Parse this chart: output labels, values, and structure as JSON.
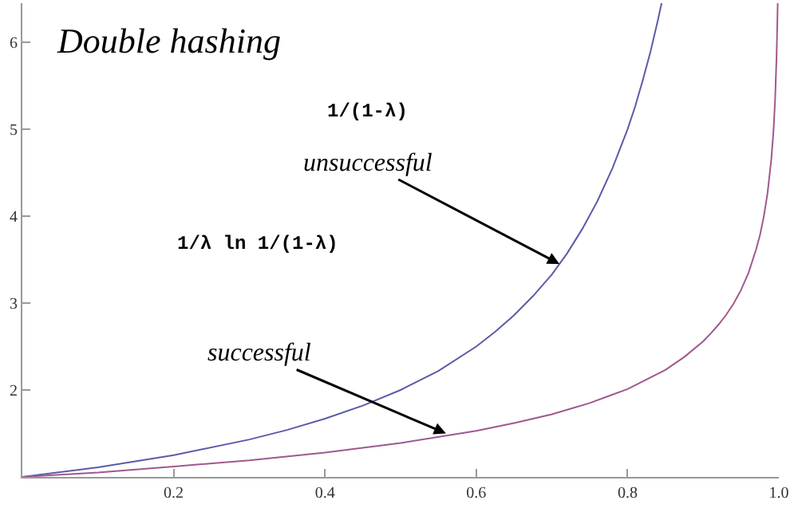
{
  "chart_data": {
    "type": "line",
    "title": "Double hashing",
    "series": [
      {
        "color": "#5b5ba8",
        "x": [
          0,
          0.1,
          0.2,
          0.3,
          0.35,
          0.4,
          0.45,
          0.5,
          0.55,
          0.6,
          0.625,
          0.65,
          0.675,
          0.7,
          0.72,
          0.74,
          0.76,
          0.78,
          0.8,
          0.81,
          0.82,
          0.83,
          0.84,
          0.845
        ],
        "values": [
          1,
          1.11,
          1.25,
          1.43,
          1.54,
          1.67,
          1.82,
          2,
          2.22,
          2.5,
          2.67,
          2.86,
          3.08,
          3.33,
          3.57,
          3.85,
          4.17,
          4.55,
          5,
          5.26,
          5.56,
          5.88,
          6.25,
          6.45
        ]
      },
      {
        "color": "#a0588e",
        "x": [
          0,
          0.1,
          0.2,
          0.3,
          0.4,
          0.5,
          0.6,
          0.65,
          0.7,
          0.75,
          0.8,
          0.825,
          0.85,
          0.875,
          0.9,
          0.91,
          0.92,
          0.93,
          0.94,
          0.95,
          0.96,
          0.97,
          0.975,
          0.98,
          0.985,
          0.99,
          0.993,
          0.995,
          0.997,
          0.998,
          0.9985
        ],
        "values": [
          1,
          1.05,
          1.12,
          1.19,
          1.28,
          1.39,
          1.53,
          1.62,
          1.72,
          1.85,
          2.01,
          2.12,
          2.23,
          2.38,
          2.56,
          2.65,
          2.75,
          2.86,
          2.99,
          3.15,
          3.35,
          3.62,
          3.78,
          3.99,
          4.26,
          4.65,
          4.99,
          5.33,
          5.84,
          6.22,
          6.45
        ]
      }
    ],
    "annotations": [
      "1/(1-λ)",
      {
        "text": "unsuccessful",
        "x": 0.71,
        "y": 3.45
      },
      "1/λ ln 1/(1-λ)",
      {
        "text": "successful",
        "x": 0.56,
        "y": 1.5
      }
    ],
    "xlim": [
      0,
      1
    ],
    "ylim": [
      1,
      6.45
    ],
    "xticks": [
      0.2,
      0.4,
      0.6,
      0.8,
      {
        "value": 1,
        "label": "1.0"
      }
    ],
    "yticks": [
      2,
      3,
      4,
      5,
      6
    ],
    "marker": "none",
    "line_style": "solid"
  }
}
